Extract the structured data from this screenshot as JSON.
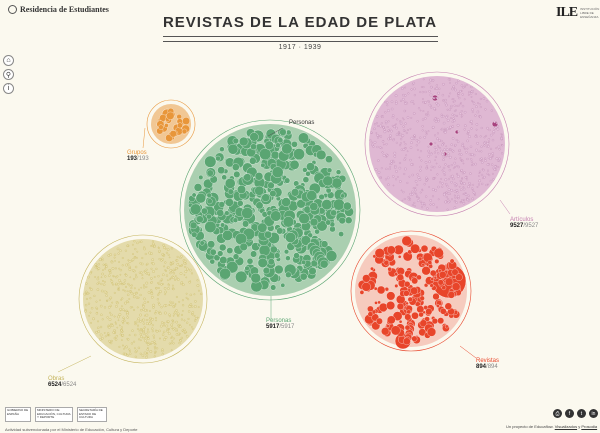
{
  "header": {
    "logo_text": "Residencia de Estudiantes",
    "title": "REVISTAS DE LA EDAD DE PLATA",
    "years": "1917 · 1939",
    "ile_mark": "ILE",
    "ile_text": "INSTITUCIÓN LIBRE DE ENSEÑANZA"
  },
  "sidebar": [
    {
      "name": "home-button",
      "icon": "home-icon",
      "glyph": "⌂"
    },
    {
      "name": "search-button",
      "icon": "search-icon",
      "glyph": "⚲"
    },
    {
      "name": "info-button",
      "icon": "info-icon",
      "glyph": "i"
    }
  ],
  "groups": {
    "grupos": {
      "label": "Grupos",
      "count": "193",
      "total": "193",
      "color": "#e8963a"
    },
    "personas": {
      "label": "Personas",
      "count": "5917",
      "total": "5917",
      "color": "#5aa572",
      "top_label": "Personas"
    },
    "articulos": {
      "label": "Artículos",
      "count": "9527",
      "total": "9527",
      "color": "#c57fb0"
    },
    "obras": {
      "label": "Obras",
      "count": "6524",
      "total": "6524",
      "color": "#c4b35a"
    },
    "revistas": {
      "label": "Revistas",
      "count": "894",
      "total": "894",
      "color": "#e8452a"
    }
  },
  "footer": {
    "gov_1": "GOBIERNO DE ESPAÑA",
    "gov_2": "MINISTERIO DE EDUCACIÓN, CULTURA Y DEPORTE",
    "gov_3": "SECRETARÍA DE ESTADO DE CULTURA",
    "note": "Actividad subvencionada por el Ministerio de Educación, Cultura y Deporte",
    "credit_prefix": "Un proyecto de Educaflow. ",
    "credit_link1": "Visualizados",
    "credit_mid": " y ",
    "credit_link2": "Prosodia"
  },
  "social": [
    {
      "name": "print-button",
      "icon": "print-icon",
      "glyph": "⎙"
    },
    {
      "name": "facebook-button",
      "icon": "facebook-icon",
      "glyph": "f"
    },
    {
      "name": "twitter-button",
      "icon": "twitter-icon",
      "glyph": "t"
    },
    {
      "name": "linkedin-button",
      "icon": "linkedin-icon",
      "glyph": "in"
    }
  ]
}
